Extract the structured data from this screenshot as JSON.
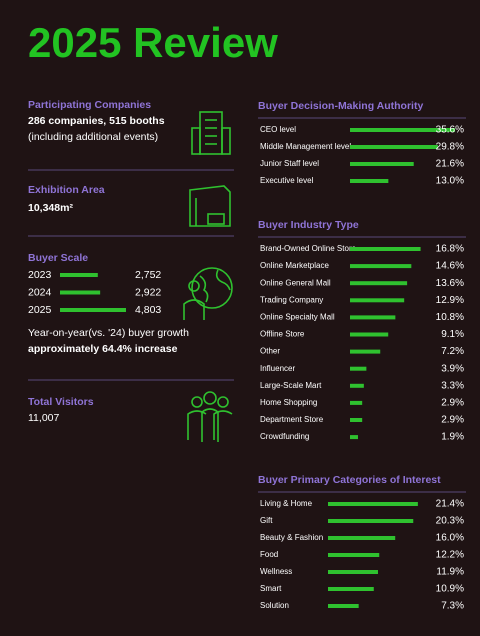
{
  "title": "2025 Review",
  "left": {
    "participating": {
      "heading": "Participating Companies",
      "line1": "286 companies, 515 booths",
      "line2": "(including additional events)"
    },
    "area": {
      "heading": "Exhibition Area",
      "value": "10,348m²"
    },
    "buyer_scale": {
      "heading": "Buyer Scale",
      "rows": [
        {
          "year": "2023",
          "value": 2752,
          "value_label": "2,752"
        },
        {
          "year": "2024",
          "value": 2922,
          "value_label": "2,922"
        },
        {
          "year": "2025",
          "value": 4803,
          "value_label": "4,803"
        }
      ],
      "note": "Year-on-year(vs. '24) buyer growth",
      "note_bold": "approximately 64.4% increase"
    },
    "visitors": {
      "heading": "Total Visitors",
      "value": "11,007"
    }
  },
  "sections": [
    {
      "heading": "Buyer Decision-Making Authority",
      "items": [
        {
          "label": "CEO level",
          "value": 35.6,
          "value_label": "35.6%"
        },
        {
          "label": "Middle Management level",
          "value": 29.8,
          "value_label": "29.8%"
        },
        {
          "label": "Junior Staff level",
          "value": 21.6,
          "value_label": "21.6%"
        },
        {
          "label": "Executive level",
          "value": 13.0,
          "value_label": "13.0%"
        }
      ]
    },
    {
      "heading": "Buyer Industry Type",
      "items": [
        {
          "label": "Brand-Owned Online Store",
          "value": 16.8,
          "value_label": "16.8%"
        },
        {
          "label": "Online Marketplace",
          "value": 14.6,
          "value_label": "14.6%"
        },
        {
          "label": "Online General Mall",
          "value": 13.6,
          "value_label": "13.6%"
        },
        {
          "label": "Trading Company",
          "value": 12.9,
          "value_label": "12.9%"
        },
        {
          "label": "Online Specialty Mall",
          "value": 10.8,
          "value_label": "10.8%"
        },
        {
          "label": "Offline Store",
          "value": 9.1,
          "value_label": "9.1%"
        },
        {
          "label": "Other",
          "value": 7.2,
          "value_label": "7.2%"
        },
        {
          "label": "Influencer",
          "value": 3.9,
          "value_label": "3.9%"
        },
        {
          "label": "Large-Scale Mart",
          "value": 3.3,
          "value_label": "3.3%"
        },
        {
          "label": "Home Shopping",
          "value": 2.9,
          "value_label": "2.9%"
        },
        {
          "label": "Department Store",
          "value": 2.9,
          "value_label": "2.9%"
        },
        {
          "label": "Crowdfunding",
          "value": 1.9,
          "value_label": "1.9%"
        }
      ]
    },
    {
      "heading": "Buyer Primary Categories of Interest",
      "items": [
        {
          "label": "Living & Home",
          "value": 21.4,
          "value_label": "21.4%"
        },
        {
          "label": "Gift",
          "value": 20.3,
          "value_label": "20.3%"
        },
        {
          "label": "Beauty & Fashion",
          "value": 16.0,
          "value_label": "16.0%"
        },
        {
          "label": "Food",
          "value": 12.2,
          "value_label": "12.2%"
        },
        {
          "label": "Wellness",
          "value": 11.9,
          "value_label": "11.9%"
        },
        {
          "label": "Smart",
          "value": 10.9,
          "value_label": "10.9%"
        },
        {
          "label": "Solution",
          "value": 7.3,
          "value_label": "7.3%"
        }
      ]
    }
  ]
}
